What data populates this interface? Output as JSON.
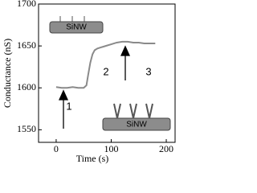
{
  "chart_data": {
    "type": "line",
    "xlabel": "Time (s)",
    "ylabel": "Conductance (nS)",
    "x": [
      0,
      10,
      20,
      30,
      40,
      50,
      55,
      58,
      62,
      66,
      70,
      75,
      80,
      90,
      100,
      110,
      120,
      130,
      140,
      150,
      160,
      170,
      180
    ],
    "series": [
      {
        "color": "#8a8a8a",
        "values": [
          1601,
          1600,
          1600,
          1601,
          1600,
          1600,
          1603,
          1615,
          1630,
          1640,
          1645,
          1647,
          1648,
          1650,
          1652,
          1654,
          1655,
          1655,
          1654,
          1654,
          1653,
          1653,
          1653
        ]
      }
    ],
    "xlim": [
      -32,
      216
    ],
    "xticks": [
      0,
      100,
      200
    ],
    "ylim": [
      1535,
      1700
    ],
    "yticks": [
      1550,
      1600,
      1650,
      1700
    ],
    "annotations": [
      "1",
      "2",
      "3",
      "SiNW",
      "SiNW"
    ]
  }
}
